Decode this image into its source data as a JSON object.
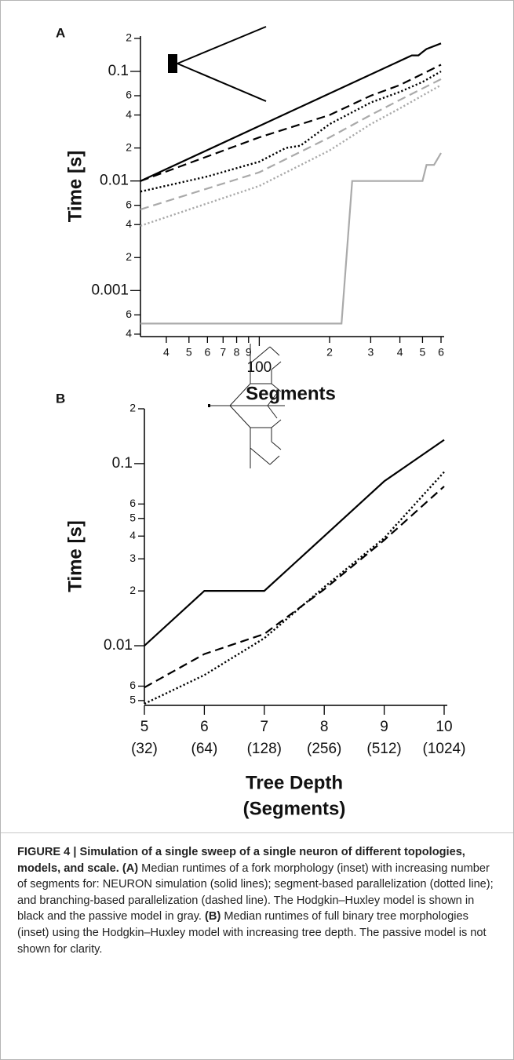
{
  "chart_data": [
    {
      "type": "line",
      "panel": "A",
      "ylabel": "Time [s]",
      "xlabel": "Segments",
      "xscale": "log",
      "yscale": "log",
      "xlim": [
        31,
        600
      ],
      "ylim": [
        0.00038,
        0.21
      ],
      "xticks": [
        {
          "value": 40,
          "label": "4"
        },
        {
          "value": 50,
          "label": "5"
        },
        {
          "value": 60,
          "label": "6"
        },
        {
          "value": 70,
          "label": "7"
        },
        {
          "value": 80,
          "label": "8"
        },
        {
          "value": 90,
          "label": "9"
        },
        100,
        {
          "value": 200,
          "label": "2"
        },
        {
          "value": 300,
          "label": "3"
        },
        {
          "value": 400,
          "label": "4"
        },
        {
          "value": 500,
          "label": "5"
        },
        {
          "value": 600,
          "label": "6"
        }
      ],
      "yticks": [
        {
          "value": 0.2,
          "label": "2"
        },
        0.1,
        {
          "value": 0.06,
          "label": "6"
        },
        {
          "value": 0.04,
          "label": "4"
        },
        {
          "value": 0.02,
          "label": "2"
        },
        0.01,
        {
          "value": 0.006,
          "label": "6"
        },
        {
          "value": 0.004,
          "label": "4"
        },
        {
          "value": 0.002,
          "label": "2"
        },
        0.001,
        {
          "value": 0.0006,
          "label": "6"
        },
        {
          "value": 0.0004,
          "label": "4"
        }
      ],
      "series": [
        {
          "color": "#000000",
          "dash": "solid",
          "x": [
            31,
            450,
            480,
            500,
            520,
            600
          ],
          "values": [
            0.01,
            0.14,
            0.14,
            0.15,
            0.16,
            0.18
          ]
        },
        {
          "color": "#000000",
          "dash": "dashed",
          "x": [
            31,
            100,
            200,
            300,
            400,
            600
          ],
          "values": [
            0.01,
            0.025,
            0.04,
            0.06,
            0.075,
            0.115
          ]
        },
        {
          "color": "#000000",
          "dash": "dotted",
          "x": [
            31,
            60,
            100,
            130,
            150,
            200,
            300,
            400,
            500,
            600
          ],
          "values": [
            0.008,
            0.011,
            0.015,
            0.02,
            0.021,
            0.033,
            0.052,
            0.065,
            0.08,
            0.1
          ]
        },
        {
          "color": "#aaaaaa",
          "dash": "dashed",
          "x": [
            31,
            100,
            200,
            300,
            400,
            600
          ],
          "values": [
            0.0055,
            0.012,
            0.025,
            0.04,
            0.055,
            0.085
          ]
        },
        {
          "color": "#aaaaaa",
          "dash": "dotted",
          "x": [
            31,
            100,
            200,
            300,
            400,
            600
          ],
          "values": [
            0.0039,
            0.009,
            0.019,
            0.033,
            0.046,
            0.075
          ]
        },
        {
          "color": "#aaaaaa",
          "dash": "solid",
          "x": [
            31,
            225,
            250,
            500,
            520,
            560,
            600
          ],
          "values": [
            0.0005,
            0.0005,
            0.01,
            0.01,
            0.014,
            0.014,
            0.018
          ]
        }
      ]
    },
    {
      "type": "line",
      "panel": "B",
      "ylabel": "Time [s]",
      "xlabel": [
        "Tree Depth",
        "(Segments)"
      ],
      "xscale": "linear",
      "yscale": "log",
      "xlim": [
        5,
        10
      ],
      "ylim": [
        0.0048,
        0.2
      ],
      "xticks": [
        5,
        6,
        7,
        8,
        9,
        10
      ],
      "xtick_sublabels": [
        "(32)",
        "(64)",
        "(128)",
        "(256)",
        "(512)",
        "(1024)"
      ],
      "yticks": [
        {
          "value": 0.2,
          "label": "2"
        },
        0.1,
        {
          "value": 0.06,
          "label": "6"
        },
        {
          "value": 0.05,
          "label": "5"
        },
        {
          "value": 0.04,
          "label": "4"
        },
        {
          "value": 0.03,
          "label": "3"
        },
        {
          "value": 0.02,
          "label": "2"
        },
        0.01,
        {
          "value": 0.006,
          "label": "6"
        },
        {
          "value": 0.005,
          "label": "5"
        }
      ],
      "series": [
        {
          "color": "#000000",
          "dash": "solid",
          "x": [
            5,
            6,
            7,
            8,
            9,
            10
          ],
          "values": [
            0.01,
            0.02,
            0.02,
            0.04,
            0.08,
            0.135
          ]
        },
        {
          "color": "#000000",
          "dash": "dashed",
          "x": [
            5,
            6,
            7,
            8,
            9,
            10
          ],
          "values": [
            0.0059,
            0.009,
            0.0116,
            0.0204,
            0.038,
            0.075
          ]
        },
        {
          "color": "#000000",
          "dash": "dotted",
          "x": [
            5,
            6,
            7,
            8,
            9,
            10
          ],
          "values": [
            0.0048,
            0.0069,
            0.011,
            0.021,
            0.039,
            0.09
          ]
        }
      ]
    }
  ],
  "caption": {
    "figure": "FIGURE 4 | Simulation of a single sweep of a single neuron of different topologies, models, and scale.",
    "a_tag": "(A)",
    "a_text": "Median runtimes of a fork morphology (inset) with increasing number of segments for: NEURON simulation (solid lines); segment-based parallelization (dotted line); and branching-based parallelization (dashed line). The Hodgkin–Huxley model is shown in black and the passive model in gray.",
    "b_tag": "(B)",
    "b_text": "Median runtimes of full binary tree morphologies (inset) using the Hodgkin–Huxley model with increasing tree depth. The passive model is not shown for clarity."
  }
}
